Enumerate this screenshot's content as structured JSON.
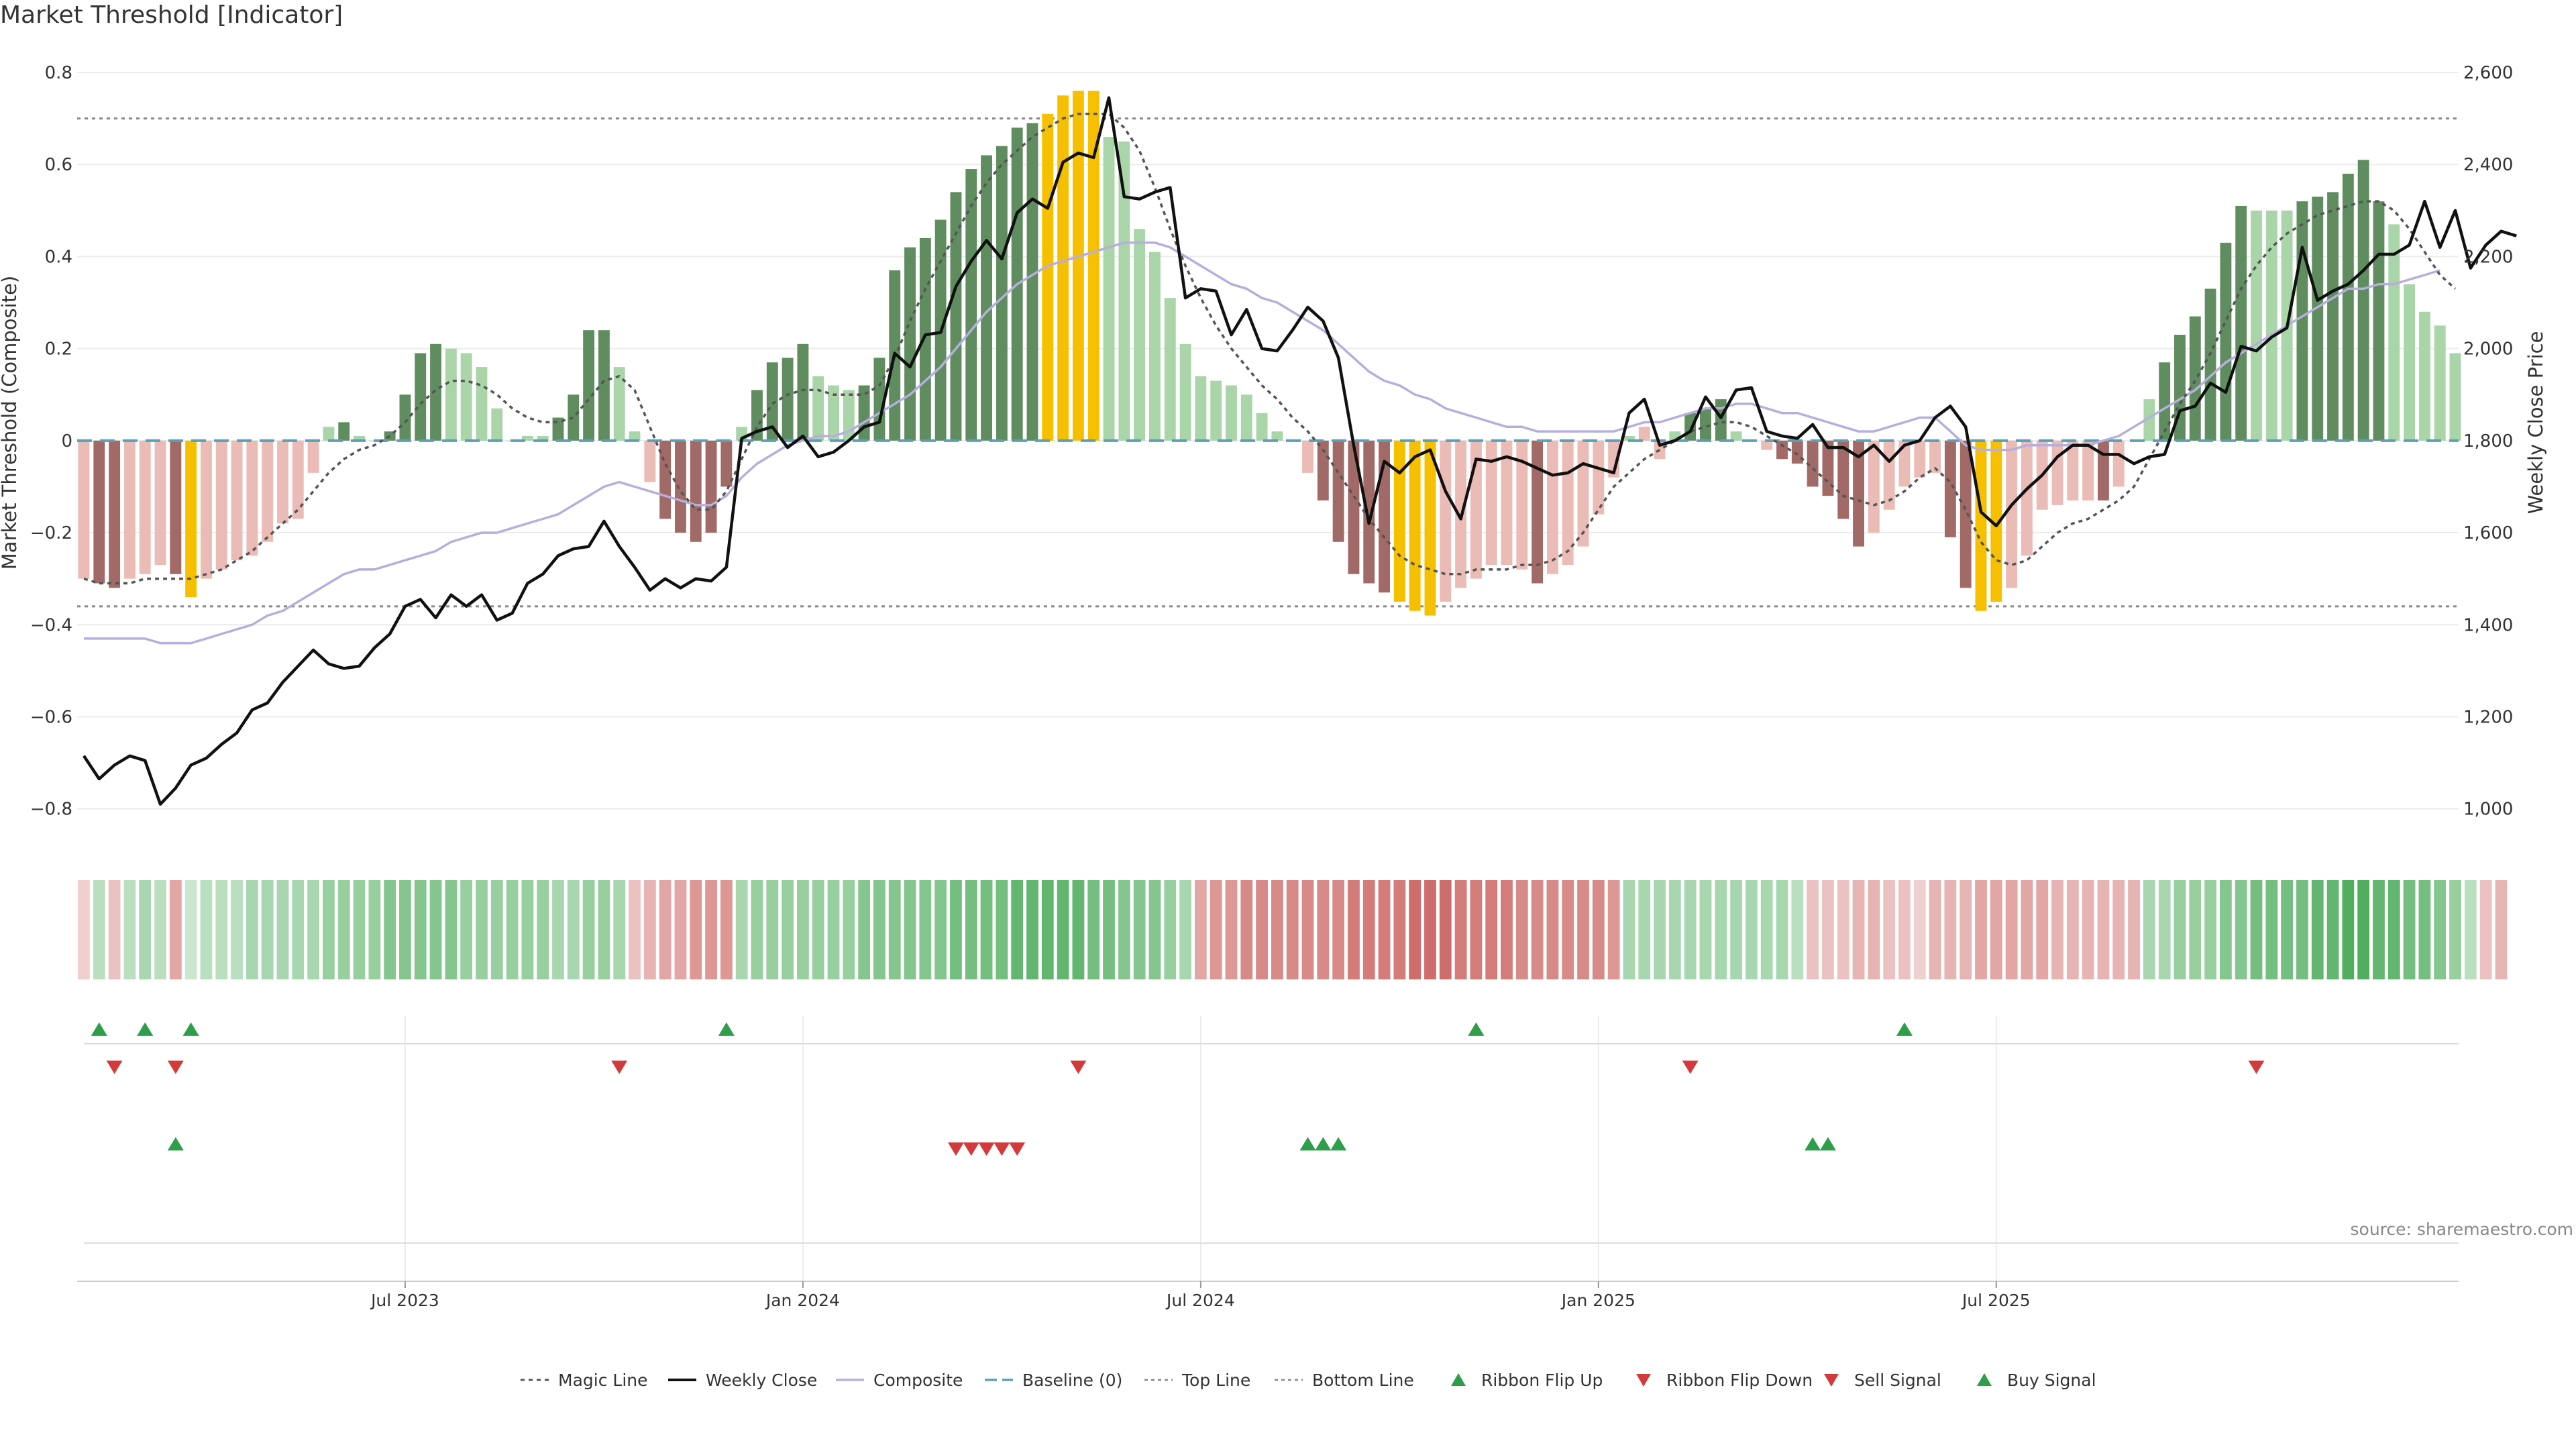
{
  "title": "Market Threshold [Indicator]",
  "source": "source: sharemaestro.com",
  "colors": {
    "dark_green": "#5f8d5f",
    "light_green": "#a9d5a9",
    "dark_red": "#a26a67",
    "light_red": "#ebbbb6",
    "gold": "#f6c000",
    "magic_line": "#555555",
    "weekly_close": "#111111",
    "composite": "#b8aedd",
    "baseline": "#5aa0b8",
    "up_signal": "#2e9e4a",
    "down_signal": "#d43a3a"
  },
  "chart_data": {
    "type": "bar",
    "title": "Market Threshold [Indicator]",
    "ylabel_left": "Market Threshold (Composite)",
    "ylabel_right": "Weekly Close Price",
    "ylim_left": [
      -0.85,
      0.8
    ],
    "ylim_right": [
      950,
      2600
    ],
    "yticks_left": [
      "0.8",
      "0.6",
      "0.4",
      "0.2",
      "0",
      "−0.2",
      "−0.4",
      "−0.6",
      "−0.8"
    ],
    "yticks_right": [
      "2,600",
      "2,400",
      "2,200",
      "2,000",
      "1,800",
      "1,600",
      "1,400",
      "1,200",
      "1,000"
    ],
    "x_tick_labels": [
      "Jul 2023",
      "Jan 2024",
      "Jul 2024",
      "Jan 2025",
      "Jul 2025"
    ],
    "x_tick_index": [
      21,
      47,
      73,
      99,
      125
    ],
    "top_line": 0.7,
    "bottom_line": -0.36,
    "grid": true,
    "legend_position": "bottom-center",
    "legend": [
      "Magic Line",
      "Weekly Close",
      "Composite",
      "Baseline (0)",
      "Top Line",
      "Bottom Line",
      "Ribbon Flip Up",
      "Ribbon Flip Down",
      "Sell Signal",
      "Buy Signal"
    ],
    "histogram": [
      -0.3,
      -0.31,
      -0.32,
      -0.3,
      -0.29,
      -0.27,
      -0.29,
      -0.34,
      -0.3,
      -0.28,
      -0.26,
      -0.25,
      -0.22,
      -0.18,
      -0.17,
      -0.07,
      0.03,
      0.04,
      0.01,
      0.0,
      0.02,
      0.1,
      0.19,
      0.21,
      0.2,
      0.19,
      0.16,
      0.07,
      0.0,
      0.01,
      0.01,
      0.05,
      0.1,
      0.24,
      0.24,
      0.16,
      0.02,
      -0.09,
      -0.17,
      -0.2,
      -0.22,
      -0.2,
      -0.1,
      0.03,
      0.11,
      0.17,
      0.18,
      0.21,
      0.14,
      0.12,
      0.11,
      0.12,
      0.18,
      0.37,
      0.42,
      0.44,
      0.48,
      0.54,
      0.59,
      0.62,
      0.64,
      0.68,
      0.69,
      0.71,
      0.75,
      0.76,
      0.76,
      0.66,
      0.65,
      0.46,
      0.41,
      0.31,
      0.21,
      0.14,
      0.13,
      0.12,
      0.1,
      0.06,
      0.02,
      0.0,
      -0.07,
      -0.13,
      -0.22,
      -0.29,
      -0.31,
      -0.33,
      -0.35,
      -0.37,
      -0.38,
      -0.35,
      -0.32,
      -0.3,
      -0.27,
      -0.27,
      -0.28,
      -0.31,
      -0.29,
      -0.27,
      -0.23,
      -0.16,
      -0.08,
      0.01,
      0.03,
      -0.04,
      0.02,
      0.06,
      0.07,
      0.09,
      0.02,
      0.0,
      -0.02,
      -0.04,
      -0.05,
      -0.1,
      -0.12,
      -0.17,
      -0.23,
      -0.2,
      -0.15,
      -0.1,
      -0.08,
      -0.07,
      -0.21,
      -0.32,
      -0.37,
      -0.35,
      -0.32,
      -0.25,
      -0.15,
      -0.14,
      -0.13,
      -0.13,
      -0.13,
      -0.1,
      0.0,
      0.09,
      0.17,
      0.23,
      0.27,
      0.33,
      0.43,
      0.51,
      0.5,
      0.5,
      0.5,
      0.52,
      0.53,
      0.54,
      0.58,
      0.61,
      0.52,
      0.47,
      0.34,
      0.28,
      0.25,
      0.19
    ],
    "histogram_color_class": [
      "lr",
      "dr",
      "dr",
      "lr",
      "lr",
      "lr",
      "dr",
      "gold",
      "lr",
      "lr",
      "lr",
      "lr",
      "lr",
      "lr",
      "lr",
      "lr",
      "lg",
      "dg",
      "lg",
      "lg",
      "dg",
      "dg",
      "dg",
      "dg",
      "lg",
      "lg",
      "lg",
      "lg",
      "lg",
      "lg",
      "lg",
      "dg",
      "dg",
      "dg",
      "dg",
      "lg",
      "lg",
      "lr",
      "dr",
      "dr",
      "dr",
      "dr",
      "dr",
      "lg",
      "dg",
      "dg",
      "dg",
      "dg",
      "lg",
      "lg",
      "lg",
      "dg",
      "dg",
      "dg",
      "dg",
      "dg",
      "dg",
      "dg",
      "dg",
      "dg",
      "dg",
      "dg",
      "dg",
      "gold",
      "gold",
      "gold",
      "gold",
      "lg",
      "lg",
      "lg",
      "lg",
      "lg",
      "lg",
      "lg",
      "lg",
      "lg",
      "lg",
      "lg",
      "lg",
      "lg",
      "lr",
      "dr",
      "dr",
      "dr",
      "dr",
      "dr",
      "gold",
      "gold",
      "gold",
      "lr",
      "lr",
      "lr",
      "lr",
      "lr",
      "lr",
      "dr",
      "lr",
      "lr",
      "lr",
      "lr",
      "lr",
      "lg",
      "lr",
      "lr",
      "lg",
      "dg",
      "dg",
      "dg",
      "lg",
      "lg",
      "lr",
      "dr",
      "dr",
      "dr",
      "dr",
      "dr",
      "dr",
      "lr",
      "lr",
      "lr",
      "lr",
      "lr",
      "dr",
      "dr",
      "gold",
      "gold",
      "lr",
      "lr",
      "lr",
      "lr",
      "lr",
      "lr",
      "dr",
      "lr",
      "lr",
      "lg",
      "dg",
      "dg",
      "dg",
      "dg",
      "dg",
      "dg",
      "lg",
      "lg",
      "lg",
      "dg",
      "dg",
      "dg",
      "dg",
      "dg",
      "dg",
      "lg",
      "lg",
      "lg",
      "lg",
      "lg",
      "lg"
    ],
    "weekly_close": [
      1115,
      1065,
      1095,
      1115,
      1105,
      1010,
      1045,
      1095,
      1110,
      1140,
      1165,
      1215,
      1230,
      1275,
      1310,
      1345,
      1315,
      1305,
      1310,
      1350,
      1380,
      1440,
      1455,
      1415,
      1465,
      1440,
      1465,
      1410,
      1425,
      1490,
      1510,
      1550,
      1565,
      1570,
      1625,
      1570,
      1525,
      1475,
      1500,
      1480,
      1500,
      1495,
      1525,
      1805,
      1820,
      1830,
      1785,
      1810,
      1765,
      1775,
      1800,
      1830,
      1840,
      1990,
      1960,
      2030,
      2035,
      2135,
      2190,
      2235,
      2195,
      2295,
      2325,
      2305,
      2405,
      2425,
      2415,
      2545,
      2330,
      2325,
      2340,
      2350,
      2110,
      2130,
      2125,
      2030,
      2085,
      2000,
      1995,
      2040,
      2090,
      2060,
      1980,
      1790,
      1620,
      1755,
      1730,
      1765,
      1780,
      1690,
      1630,
      1760,
      1755,
      1765,
      1755,
      1740,
      1725,
      1730,
      1750,
      1740,
      1730,
      1860,
      1890,
      1790,
      1800,
      1820,
      1895,
      1850,
      1910,
      1915,
      1820,
      1810,
      1805,
      1835,
      1785,
      1785,
      1765,
      1790,
      1755,
      1790,
      1800,
      1850,
      1875,
      1830,
      1645,
      1615,
      1660,
      1695,
      1725,
      1765,
      1790,
      1790,
      1770,
      1770,
      1750,
      1765,
      1770,
      1865,
      1875,
      1925,
      1905,
      2005,
      1995,
      2025,
      2045,
      2220,
      2105,
      2125,
      2140,
      2170,
      2205,
      2205,
      2225,
      2320,
      2220,
      2300,
      2175,
      2225,
      2255,
      2245
    ],
    "magic_line": [
      -0.3,
      -0.31,
      -0.31,
      -0.31,
      -0.3,
      -0.3,
      -0.3,
      -0.3,
      -0.29,
      -0.28,
      -0.26,
      -0.24,
      -0.21,
      -0.18,
      -0.15,
      -0.11,
      -0.07,
      -0.04,
      -0.02,
      -0.01,
      0.01,
      0.04,
      0.08,
      0.11,
      0.13,
      0.13,
      0.12,
      0.1,
      0.07,
      0.05,
      0.04,
      0.04,
      0.05,
      0.09,
      0.13,
      0.14,
      0.11,
      0.03,
      -0.05,
      -0.11,
      -0.15,
      -0.15,
      -0.11,
      -0.04,
      0.03,
      0.08,
      0.1,
      0.11,
      0.11,
      0.1,
      0.1,
      0.1,
      0.12,
      0.18,
      0.26,
      0.33,
      0.39,
      0.45,
      0.51,
      0.56,
      0.6,
      0.63,
      0.66,
      0.68,
      0.7,
      0.71,
      0.71,
      0.71,
      0.68,
      0.63,
      0.55,
      0.46,
      0.38,
      0.31,
      0.25,
      0.2,
      0.16,
      0.12,
      0.09,
      0.05,
      0.02,
      -0.02,
      -0.07,
      -0.12,
      -0.17,
      -0.21,
      -0.25,
      -0.27,
      -0.28,
      -0.29,
      -0.29,
      -0.28,
      -0.28,
      -0.28,
      -0.27,
      -0.27,
      -0.26,
      -0.24,
      -0.2,
      -0.15,
      -0.1,
      -0.07,
      -0.04,
      -0.02,
      0.0,
      0.02,
      0.03,
      0.04,
      0.04,
      0.03,
      0.01,
      -0.01,
      -0.03,
      -0.06,
      -0.09,
      -0.12,
      -0.13,
      -0.14,
      -0.13,
      -0.11,
      -0.08,
      -0.06,
      -0.09,
      -0.15,
      -0.22,
      -0.26,
      -0.27,
      -0.26,
      -0.23,
      -0.2,
      -0.18,
      -0.17,
      -0.15,
      -0.13,
      -0.1,
      -0.04,
      0.02,
      0.08,
      0.13,
      0.19,
      0.26,
      0.33,
      0.38,
      0.42,
      0.45,
      0.47,
      0.49,
      0.5,
      0.51,
      0.52,
      0.52,
      0.5,
      0.46,
      0.41,
      0.36,
      0.33
    ],
    "composite": [
      -0.43,
      -0.43,
      -0.43,
      -0.43,
      -0.43,
      -0.44,
      -0.44,
      -0.44,
      -0.43,
      -0.42,
      -0.41,
      -0.4,
      -0.38,
      -0.37,
      -0.35,
      -0.33,
      -0.31,
      -0.29,
      -0.28,
      -0.28,
      -0.27,
      -0.26,
      -0.25,
      -0.24,
      -0.22,
      -0.21,
      -0.2,
      -0.2,
      -0.19,
      -0.18,
      -0.17,
      -0.16,
      -0.14,
      -0.12,
      -0.1,
      -0.09,
      -0.1,
      -0.11,
      -0.12,
      -0.13,
      -0.14,
      -0.14,
      -0.12,
      -0.08,
      -0.05,
      -0.03,
      -0.01,
      0.0,
      0.01,
      0.01,
      0.02,
      0.04,
      0.06,
      0.08,
      0.1,
      0.13,
      0.16,
      0.2,
      0.24,
      0.28,
      0.31,
      0.34,
      0.36,
      0.38,
      0.39,
      0.4,
      0.41,
      0.42,
      0.43,
      0.43,
      0.43,
      0.42,
      0.4,
      0.38,
      0.36,
      0.34,
      0.33,
      0.31,
      0.3,
      0.28,
      0.26,
      0.24,
      0.21,
      0.18,
      0.15,
      0.13,
      0.12,
      0.1,
      0.09,
      0.07,
      0.06,
      0.05,
      0.04,
      0.03,
      0.03,
      0.02,
      0.02,
      0.02,
      0.02,
      0.02,
      0.02,
      0.03,
      0.04,
      0.04,
      0.05,
      0.06,
      0.07,
      0.07,
      0.08,
      0.08,
      0.07,
      0.06,
      0.06,
      0.05,
      0.04,
      0.03,
      0.02,
      0.02,
      0.03,
      0.04,
      0.05,
      0.05,
      0.02,
      -0.01,
      -0.02,
      -0.02,
      -0.02,
      -0.01,
      -0.01,
      -0.01,
      -0.01,
      -0.01,
      0.0,
      0.01,
      0.03,
      0.05,
      0.07,
      0.09,
      0.11,
      0.14,
      0.17,
      0.19,
      0.21,
      0.23,
      0.25,
      0.27,
      0.29,
      0.31,
      0.33,
      0.33,
      0.34,
      0.34,
      0.35,
      0.36,
      0.37
    ],
    "ribbon_strength": [
      -0.2,
      0.3,
      -0.3,
      0.3,
      0.4,
      0.3,
      -0.5,
      0.2,
      0.3,
      0.3,
      0.3,
      0.4,
      0.4,
      0.4,
      0.4,
      0.4,
      0.5,
      0.5,
      0.5,
      0.5,
      0.6,
      0.6,
      0.6,
      0.6,
      0.6,
      0.5,
      0.5,
      0.5,
      0.5,
      0.5,
      0.5,
      0.4,
      0.4,
      0.5,
      0.5,
      0.4,
      -0.3,
      -0.4,
      -0.5,
      -0.5,
      -0.6,
      -0.6,
      -0.6,
      0.4,
      0.5,
      0.5,
      0.5,
      0.5,
      0.5,
      0.5,
      0.5,
      0.6,
      0.6,
      0.6,
      0.6,
      0.6,
      0.6,
      0.7,
      0.7,
      0.7,
      0.7,
      0.8,
      0.8,
      0.8,
      0.8,
      0.8,
      0.7,
      0.7,
      0.6,
      0.6,
      0.6,
      0.5,
      0.4,
      -0.5,
      -0.6,
      -0.6,
      -0.7,
      -0.7,
      -0.7,
      -0.7,
      -0.7,
      -0.7,
      -0.7,
      -0.8,
      -0.8,
      -0.8,
      -0.8,
      -0.9,
      -0.9,
      -0.9,
      -0.8,
      -0.8,
      -0.8,
      -0.8,
      -0.7,
      -0.7,
      -0.7,
      -0.7,
      -0.7,
      -0.7,
      -0.6,
      0.4,
      0.4,
      0.4,
      0.4,
      0.4,
      0.4,
      0.4,
      0.4,
      0.4,
      0.4,
      0.4,
      0.3,
      -0.3,
      -0.3,
      -0.3,
      -0.4,
      -0.4,
      -0.3,
      -0.3,
      -0.2,
      -0.4,
      -0.4,
      -0.4,
      -0.5,
      -0.5,
      -0.5,
      -0.5,
      -0.5,
      -0.4,
      -0.4,
      -0.4,
      -0.4,
      -0.4,
      -0.4,
      0.4,
      0.4,
      0.5,
      0.5,
      0.5,
      0.6,
      0.6,
      0.7,
      0.7,
      0.7,
      0.7,
      0.8,
      0.8,
      0.9,
      0.9,
      0.8,
      0.8,
      0.7,
      0.7,
      0.6,
      0.5,
      0.3,
      -0.3,
      -0.4
    ],
    "ribbon_flip_up": [
      1,
      4,
      7,
      42,
      91,
      119
    ],
    "ribbon_flip_down": [
      2,
      6,
      35,
      65,
      105,
      142
    ],
    "sell_signal": [
      57,
      58,
      59,
      60,
      61
    ],
    "buy_signal": [
      6,
      80,
      81,
      82,
      113,
      114
    ]
  }
}
